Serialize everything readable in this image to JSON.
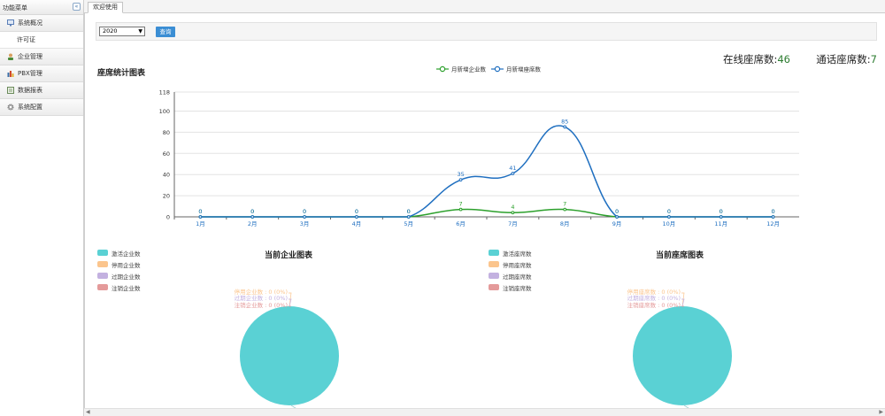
{
  "sidebar": {
    "title": "功能菜单",
    "collapse_icon": "double-chevron-left-icon",
    "items": [
      {
        "label": "系统概况",
        "icon": "monitor-icon",
        "color": "#5b7fb8"
      },
      {
        "label": "许可证",
        "sub": true
      },
      {
        "label": "企业管理",
        "icon": "user-icon",
        "color": "#4a8a3a"
      },
      {
        "label": "PBX管理",
        "icon": "bar-chart-icon",
        "color": "#d04a2a"
      },
      {
        "label": "数据报表",
        "icon": "report-icon",
        "color": "#6a8a5a"
      },
      {
        "label": "系统配置",
        "icon": "gear-icon",
        "color": "#888888"
      }
    ]
  },
  "tabs": [
    {
      "label": "欢迎使用"
    }
  ],
  "filter": {
    "year": "2020",
    "query_label": "查询"
  },
  "stats": {
    "online_label": "在线座席数:",
    "online_value": "46",
    "calling_label": "通话座席数:",
    "calling_value": "7"
  },
  "line_chart_title": "座席统计图表",
  "pie_left_title": "当前企业图表",
  "pie_right_title": "当前座席图表",
  "pie_left_legend": [
    "激活企业数",
    "停用企业数",
    "过期企业数",
    "注销企业数"
  ],
  "pie_right_legend": [
    "激活座席数",
    "停用座席数",
    "过期座席数",
    "注销座席数"
  ],
  "pie_left_labels": [
    "停用企业数 : 0 (0%)",
    "过期企业数 : 0 (0%)",
    "注销企业数 : 0 (0%)"
  ],
  "pie_right_labels": [
    "停用座席数 : 0 (0%)",
    "过期座席数 : 0 (0%)",
    "注销座席数 : 0 (0%)"
  ],
  "colors": {
    "active": "#5ad1d4",
    "disabled": "#fbc58d",
    "expired": "#c3b1e0",
    "cancelled": "#e49a9a",
    "line_enterprise": "#2ca02c",
    "line_seat": "#1f6fc0",
    "primary_button": "#3b8ed4"
  },
  "chart_data": [
    {
      "type": "line",
      "title": "座席统计图表",
      "categories": [
        "1月",
        "2月",
        "3月",
        "4月",
        "5月",
        "6月",
        "7月",
        "8月",
        "9月",
        "10月",
        "11月",
        "12月"
      ],
      "series": [
        {
          "name": "月新增企业数",
          "values": [
            0,
            0,
            0,
            0,
            0,
            7,
            4,
            7,
            0,
            0,
            0,
            0
          ]
        },
        {
          "name": "月新增座席数",
          "values": [
            0,
            0,
            0,
            0,
            0,
            35,
            41,
            85,
            0,
            0,
            0,
            0
          ]
        }
      ],
      "ylim": [
        0,
        118
      ],
      "yticks": [
        0,
        20,
        40,
        60,
        80,
        100,
        118
      ],
      "legend": "top-center",
      "grid": true
    },
    {
      "type": "pie",
      "title": "当前企业图表",
      "labels": [
        "激活企业数",
        "停用企业数",
        "过期企业数",
        "注销企业数"
      ],
      "values": [
        1,
        0,
        0,
        0
      ],
      "legend": "left"
    },
    {
      "type": "pie",
      "title": "当前座席图表",
      "labels": [
        "激活座席数",
        "停用座席数",
        "过期座席数",
        "注销座席数"
      ],
      "values": [
        1,
        0,
        0,
        0
      ],
      "legend": "left"
    }
  ]
}
